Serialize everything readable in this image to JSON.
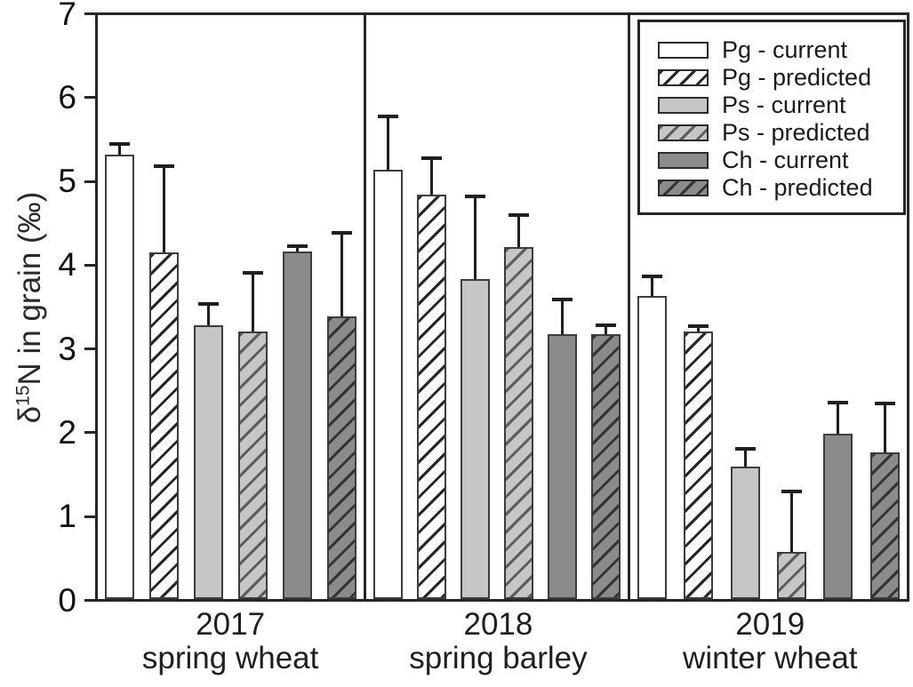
{
  "figure": {
    "background": "#ffffff",
    "frame_color": "#262626",
    "error_bar_color": "#1f1f1f",
    "bar_border_color": "#3d3d3d"
  },
  "axes": {
    "ylabel_delta": "δ",
    "ylabel_sup": "15",
    "ylabel_rest": "N in grain (‰)",
    "ylim": [
      0,
      7
    ],
    "yticks": [
      7,
      6,
      5,
      4,
      3,
      2,
      1,
      0
    ]
  },
  "chart_data": {
    "type": "bar",
    "title": "",
    "xlabel": "",
    "ylabel": "δ15N in grain (‰)",
    "ylim": [
      0,
      7
    ],
    "grid": false,
    "legend_position": "top-right",
    "error_bars": "upper, capped",
    "groups": [
      {
        "year": "2017",
        "crop": "spring wheat"
      },
      {
        "year": "2018",
        "crop": "spring barley"
      },
      {
        "year": "2019",
        "crop": "winter wheat"
      }
    ],
    "series": [
      {
        "name": "Pg - current",
        "fill": "#ffffff",
        "hatch": false,
        "hatch_color": "#262626",
        "values": [
          5.33,
          5.15,
          3.63
        ],
        "errors": [
          0.14,
          0.65,
          0.24
        ]
      },
      {
        "name": "Pg - predicted",
        "fill": "#ffffff",
        "hatch": true,
        "hatch_color": "#262626",
        "values": [
          4.16,
          4.85,
          3.21
        ],
        "errors": [
          1.04,
          0.45,
          0.07
        ]
      },
      {
        "name": "Ps - current",
        "fill": "#c6c6c6",
        "hatch": false,
        "hatch_color": "#5c5c5c",
        "values": [
          3.28,
          3.84,
          1.59
        ],
        "errors": [
          0.27,
          1.0,
          0.22
        ]
      },
      {
        "name": "Ps - predicted",
        "fill": "#c6c6c6",
        "hatch": true,
        "hatch_color": "#5c5c5c",
        "values": [
          3.21,
          4.22,
          0.57
        ],
        "errors": [
          0.71,
          0.39,
          0.74
        ]
      },
      {
        "name": "Ch - current",
        "fill": "#8b8b8b",
        "hatch": false,
        "hatch_color": "#333333",
        "values": [
          4.17,
          3.18,
          1.98
        ],
        "errors": [
          0.07,
          0.43,
          0.38
        ]
      },
      {
        "name": "Ch - predicted",
        "fill": "#8b8b8b",
        "hatch": true,
        "hatch_color": "#333333",
        "values": [
          3.39,
          3.17,
          1.76
        ],
        "errors": [
          1.01,
          0.12,
          0.6
        ]
      }
    ],
    "panel_width_pct": [
      33.22,
      32.57,
      34.21
    ]
  }
}
